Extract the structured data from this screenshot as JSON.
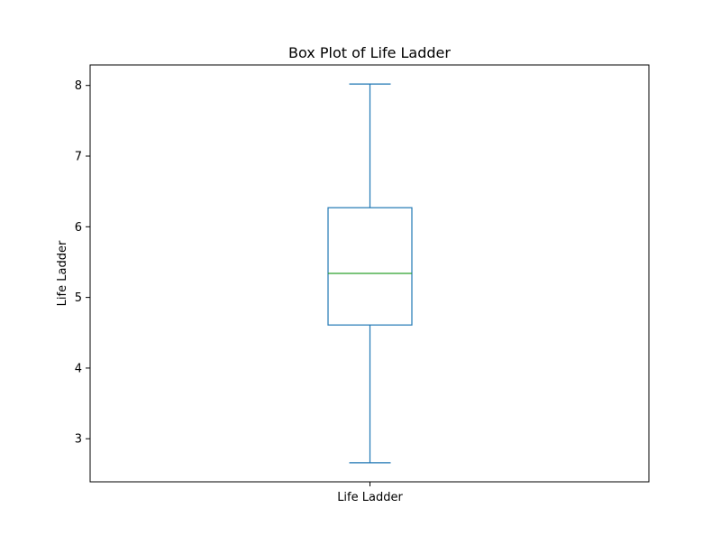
{
  "chart_data": {
    "type": "box",
    "title": "Box Plot of Life Ladder",
    "xlabel": "",
    "ylabel": "Life Ladder",
    "categories": [
      "Life Ladder"
    ],
    "boxes": [
      {
        "category": "Life Ladder",
        "whisker_low": 2.66,
        "q1": 4.61,
        "median": 5.34,
        "q3": 6.27,
        "whisker_high": 8.02
      }
    ],
    "y_ticks": [
      3,
      4,
      5,
      6,
      7,
      8
    ],
    "ylim": [
      2.39,
      8.29
    ],
    "grid": false,
    "colors": {
      "box": "#1f77b4",
      "median": "#2ca02c",
      "axes": "#000000"
    }
  }
}
